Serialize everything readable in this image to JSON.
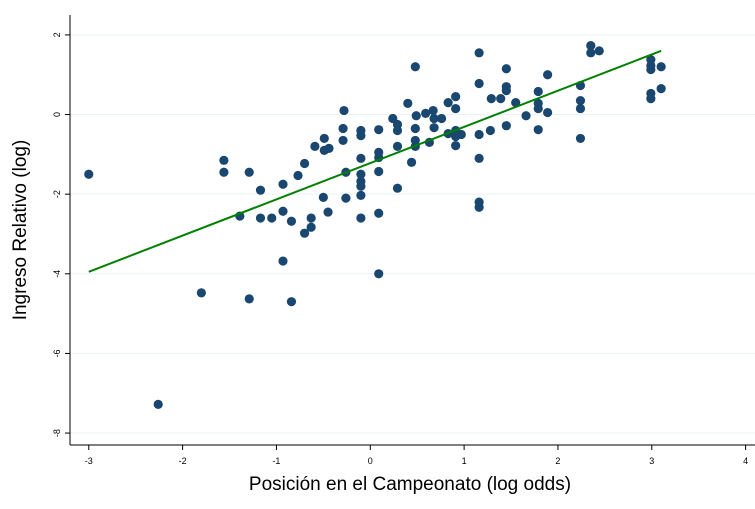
{
  "chart_data": {
    "type": "scatter",
    "xlabel": "Posición en el Campeonato (log odds)",
    "ylabel": "Ingreso Relativo (log)",
    "xlim": [
      -3.2,
      4.1
    ],
    "ylim": [
      -8.3,
      2.5
    ],
    "xticks": [
      -3,
      -2,
      -1,
      0,
      1,
      2,
      3,
      4
    ],
    "yticks": [
      -8,
      -6,
      -4,
      -2,
      0,
      2
    ],
    "grid": true,
    "series": [
      {
        "type": "scatter",
        "color": "#1a476f",
        "x": [
          -3.0,
          -2.26,
          -1.8,
          -1.56,
          -1.56,
          -1.29,
          -1.29,
          -1.39,
          -1.17,
          -1.17,
          -1.05,
          -0.93,
          -0.93,
          -0.93,
          -0.84,
          -0.84,
          -0.77,
          -0.7,
          -0.7,
          -0.63,
          -0.63,
          -0.59,
          -0.5,
          -0.49,
          -0.49,
          -0.44,
          -0.45,
          -0.29,
          -0.28,
          -0.29,
          -0.26,
          -0.26,
          -0.1,
          -0.1,
          -0.1,
          -0.1,
          -0.1,
          -0.1,
          -0.1,
          -0.1,
          0.09,
          0.09,
          0.09,
          0.09,
          0.09,
          0.09,
          0.24,
          0.29,
          0.29,
          0.29,
          0.29,
          0.4,
          0.44,
          0.49,
          0.48,
          0.48,
          0.48,
          0.48,
          0.59,
          0.63,
          0.67,
          0.68,
          0.68,
          0.76,
          0.83,
          0.83,
          0.91,
          0.91,
          0.91,
          0.91,
          0.91,
          0.97,
          1.16,
          1.16,
          1.16,
          1.16,
          1.16,
          1.16,
          1.29,
          1.28,
          1.39,
          1.45,
          1.45,
          1.45,
          1.45,
          1.55,
          1.66,
          1.79,
          1.79,
          1.79,
          1.79,
          1.89,
          1.89,
          2.24,
          2.24,
          2.24,
          2.24,
          2.35,
          2.35,
          2.44,
          2.99,
          2.99,
          2.99,
          2.99,
          2.99,
          3.1,
          3.1
        ],
        "y": [
          -1.5,
          -7.28,
          -4.48,
          -1.15,
          -1.45,
          -1.45,
          -4.63,
          -2.55,
          -1.9,
          -2.6,
          -2.6,
          -1.75,
          -2.43,
          -3.68,
          -2.68,
          -4.7,
          -1.53,
          -1.23,
          -2.98,
          -2.83,
          -2.6,
          -0.8,
          -2.08,
          -0.9,
          -0.6,
          -0.85,
          -2.45,
          -0.35,
          0.1,
          -0.65,
          -1.45,
          -2.1,
          -0.4,
          -0.53,
          -1.1,
          -1.5,
          -1.68,
          -1.8,
          -2.03,
          -2.6,
          -0.38,
          -0.95,
          -1.08,
          -1.43,
          -2.48,
          -4.0,
          -0.1,
          -0.25,
          -0.4,
          -0.8,
          -1.85,
          0.28,
          -1.2,
          -0.03,
          1.2,
          -0.35,
          -0.65,
          -0.8,
          0.03,
          -0.7,
          0.1,
          -0.1,
          -0.33,
          -0.1,
          0.3,
          -0.48,
          0.45,
          0.15,
          -0.4,
          -0.55,
          -0.78,
          -0.5,
          1.55,
          0.78,
          -0.5,
          -1.1,
          -2.2,
          -2.33,
          0.4,
          -0.4,
          0.4,
          1.15,
          0.7,
          0.6,
          -0.28,
          0.3,
          -0.03,
          0.58,
          0.28,
          0.15,
          -0.38,
          1.0,
          0.05,
          0.73,
          0.35,
          0.15,
          -0.6,
          1.73,
          1.55,
          1.6,
          1.38,
          1.23,
          1.13,
          0.53,
          0.4,
          1.2,
          0.65
        ]
      },
      {
        "type": "line",
        "color": "#008000",
        "x": [
          -3.0,
          3.1
        ],
        "y": [
          -3.95,
          1.6
        ]
      }
    ]
  }
}
